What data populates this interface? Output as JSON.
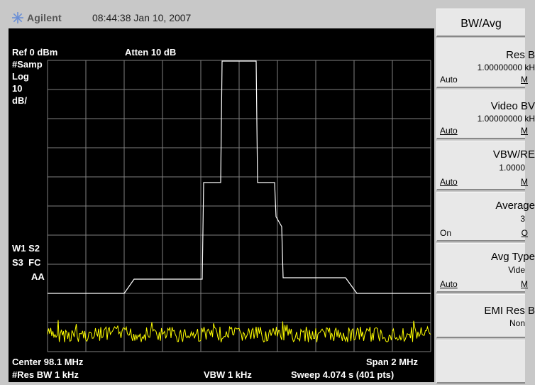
{
  "header": {
    "brand": "Agilent",
    "datetime": "08:44:38  Jan 10, 2007"
  },
  "annotations": {
    "ref_level": "Ref 0 dBm",
    "atten": "Atten 10 dB",
    "detector": "#Samp",
    "scale_type": "Log",
    "scale_value": "10",
    "scale_unit": "dB/",
    "trace_line1": "W1 S2",
    "trace_line2": "S3  FC",
    "trace_line3": "AA",
    "center": "Center 98.1 MHz",
    "span": "Span 2 MHz",
    "res_bw": "#Res BW 1 kHz",
    "vbw": "VBW 1 kHz",
    "sweep": "Sweep 4.074 s (401 pts)"
  },
  "softkeys": {
    "menu_title": "BW/Avg",
    "res_bw": {
      "label": "Res B",
      "value": "1.00000000 kH",
      "left": "Auto",
      "right": "M"
    },
    "video_bw": {
      "label": "Video BV",
      "value": "1.00000000 kH",
      "left": "Auto",
      "right": "M"
    },
    "vbw_rbw": {
      "label": "VBW/RE",
      "value": "1.0000",
      "left": "Auto",
      "right": "M"
    },
    "average": {
      "label": "Average",
      "value": "3",
      "left": "On",
      "right": "O"
    },
    "avg_type": {
      "label": "Avg Type",
      "value": "Vide",
      "left": "Auto",
      "right": "M"
    },
    "emi_res_bw": {
      "label": "EMI Res B",
      "value": "Non"
    },
    "blank": {
      "label": ""
    }
  },
  "colors": {
    "screen": "#000000",
    "grid": "#808080",
    "trace1": "#ffffff",
    "trace2": "#ffff00",
    "panel": "#c8c8c8"
  }
}
